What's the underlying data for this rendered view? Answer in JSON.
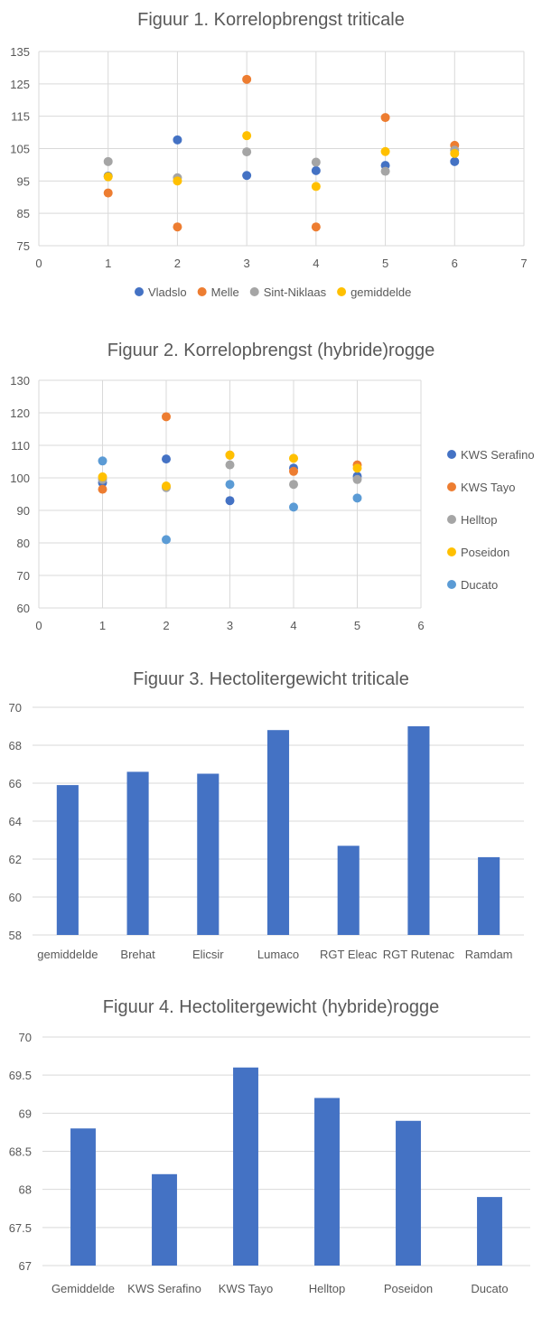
{
  "colors": {
    "blue": "#4472C4",
    "orange": "#ED7D31",
    "gray": "#A5A5A5",
    "yellow": "#FFC000",
    "lightblue": "#5B9BD5",
    "grid": "#D9D9D9",
    "text": "#595959"
  },
  "chart_data": [
    {
      "type": "scatter",
      "title": "Figuur 1. Korrelopbrengst triticale",
      "xlim": [
        0,
        7
      ],
      "ylim": [
        75,
        135
      ],
      "xticks": [
        0,
        1,
        2,
        3,
        4,
        5,
        6,
        7
      ],
      "yticks": [
        75,
        85,
        95,
        105,
        115,
        125,
        135
      ],
      "grid": "vertical and horizontal",
      "legend_position": "bottom",
      "series": [
        {
          "name": "Vladslo",
          "color": "#4472C4",
          "x": [
            1,
            2,
            3,
            4,
            5,
            6
          ],
          "y": [
            96.5,
            107.7,
            96.7,
            98.2,
            99.8,
            101
          ]
        },
        {
          "name": "Melle",
          "color": "#ED7D31",
          "x": [
            1,
            2,
            3,
            4,
            5,
            6
          ],
          "y": [
            91.3,
            80.8,
            126.4,
            80.8,
            114.6,
            106
          ]
        },
        {
          "name": "Sint-Niklaas",
          "color": "#A5A5A5",
          "x": [
            1,
            2,
            3,
            4,
            5,
            6
          ],
          "y": [
            101,
            96,
            104,
            100.8,
            98,
            104.5
          ]
        },
        {
          "name": "gemiddelde",
          "color": "#FFC000",
          "x": [
            1,
            2,
            3,
            4,
            5,
            6
          ],
          "y": [
            96.3,
            95,
            109,
            93.3,
            104.1,
            103.5
          ]
        }
      ]
    },
    {
      "type": "scatter",
      "title": "Figuur 2. Korrelopbrengst (hybride)rogge",
      "xlim": [
        0,
        6
      ],
      "ylim": [
        60,
        130
      ],
      "xticks": [
        0,
        1,
        2,
        3,
        4,
        5,
        6
      ],
      "yticks": [
        60,
        70,
        80,
        90,
        100,
        110,
        120,
        130
      ],
      "grid": "vertical and horizontal",
      "legend_position": "right",
      "series": [
        {
          "name": "KWS Serafino",
          "color": "#4472C4",
          "x": [
            1,
            2,
            3,
            4,
            5
          ],
          "y": [
            98.5,
            105.8,
            93,
            103,
            100.5
          ]
        },
        {
          "name": "KWS Tayo",
          "color": "#ED7D31",
          "x": [
            1,
            2,
            3,
            4,
            5
          ],
          "y": [
            96.5,
            118.8,
            107,
            102,
            104
          ]
        },
        {
          "name": "Helltop",
          "color": "#A5A5A5",
          "x": [
            1,
            2,
            3,
            4,
            5
          ],
          "y": [
            99.5,
            97,
            104,
            98,
            99.5
          ]
        },
        {
          "name": "Poseidon",
          "color": "#FFC000",
          "x": [
            1,
            2,
            3,
            4,
            5
          ],
          "y": [
            100.3,
            97.5,
            107,
            106,
            103
          ]
        },
        {
          "name": "Ducato",
          "color": "#5B9BD5",
          "x": [
            1,
            2,
            3,
            4,
            5
          ],
          "y": [
            105.2,
            81,
            98,
            91,
            93.8
          ]
        }
      ]
    },
    {
      "type": "bar",
      "title": "Figuur 3. Hectolitergewicht triticale",
      "categories": [
        "gemiddelde",
        "Brehat",
        "Elicsir",
        "Lumaco",
        "RGT Eleac",
        "RGT Rutenac",
        "Ramdam"
      ],
      "values": [
        65.9,
        66.6,
        66.5,
        68.8,
        62.7,
        69,
        62.1
      ],
      "ylim": [
        58,
        70
      ],
      "yticks": [
        58,
        60,
        62,
        64,
        66,
        68,
        70
      ],
      "grid": "horizontal",
      "color": "#4472C4"
    },
    {
      "type": "bar",
      "title": "Figuur 4. Hectolitergewicht (hybride)rogge",
      "categories": [
        "Gemiddelde",
        "KWS Serafino",
        "KWS Tayo",
        "Helltop",
        "Poseidon",
        "Ducato"
      ],
      "values": [
        68.8,
        68.2,
        69.6,
        69.2,
        68.9,
        67.9
      ],
      "ylim": [
        67,
        70
      ],
      "yticks": [
        67,
        67.5,
        68,
        68.5,
        69,
        69.5,
        70
      ],
      "grid": "horizontal",
      "color": "#4472C4"
    }
  ]
}
